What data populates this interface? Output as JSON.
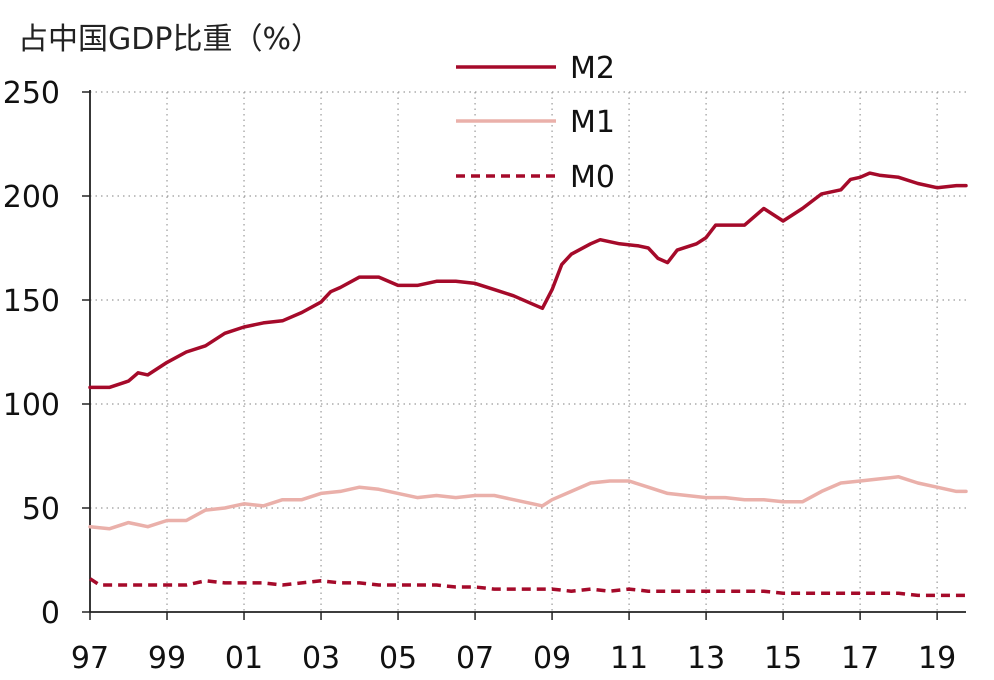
{
  "chart_data": {
    "type": "line",
    "title": "占中国GDP比重（%）",
    "xlabel": "",
    "ylabel": "",
    "ylim": [
      0,
      250
    ],
    "y_ticks": [
      0,
      50,
      100,
      150,
      200,
      250
    ],
    "xlim": [
      1997.0,
      2019.75
    ],
    "x_ticks": [
      {
        "value": 1997,
        "label": "97"
      },
      {
        "value": 1999,
        "label": "99"
      },
      {
        "value": 2001,
        "label": "01"
      },
      {
        "value": 2003,
        "label": "03"
      },
      {
        "value": 2005,
        "label": "05"
      },
      {
        "value": 2007,
        "label": "07"
      },
      {
        "value": 2009,
        "label": "09"
      },
      {
        "value": 2011,
        "label": "11"
      },
      {
        "value": 2013,
        "label": "13"
      },
      {
        "value": 2015,
        "label": "15"
      },
      {
        "value": 2017,
        "label": "17"
      },
      {
        "value": 2019,
        "label": "19"
      }
    ],
    "grid": true,
    "legend_position": "top-center",
    "series": [
      {
        "name": "M2",
        "color": "#a50a2a",
        "style": "solid",
        "points": [
          [
            1997.0,
            108
          ],
          [
            1997.5,
            108
          ],
          [
            1998.0,
            111
          ],
          [
            1998.25,
            115
          ],
          [
            1998.5,
            114
          ],
          [
            1999.0,
            120
          ],
          [
            1999.5,
            125
          ],
          [
            2000.0,
            128
          ],
          [
            2000.5,
            134
          ],
          [
            2001.0,
            137
          ],
          [
            2001.5,
            139
          ],
          [
            2002.0,
            140
          ],
          [
            2002.5,
            144
          ],
          [
            2003.0,
            149
          ],
          [
            2003.25,
            154
          ],
          [
            2003.5,
            156
          ],
          [
            2004.0,
            161
          ],
          [
            2004.5,
            161
          ],
          [
            2005.0,
            157
          ],
          [
            2005.5,
            157
          ],
          [
            2006.0,
            159
          ],
          [
            2006.5,
            159
          ],
          [
            2007.0,
            158
          ],
          [
            2007.5,
            155
          ],
          [
            2008.0,
            152
          ],
          [
            2008.5,
            148
          ],
          [
            2008.75,
            146
          ],
          [
            2009.0,
            155
          ],
          [
            2009.25,
            167
          ],
          [
            2009.5,
            172
          ],
          [
            2010.0,
            177
          ],
          [
            2010.25,
            179
          ],
          [
            2010.75,
            177
          ],
          [
            2011.25,
            176
          ],
          [
            2011.5,
            175
          ],
          [
            2011.75,
            170
          ],
          [
            2012.0,
            168
          ],
          [
            2012.25,
            174
          ],
          [
            2012.75,
            177
          ],
          [
            2013.0,
            180
          ],
          [
            2013.25,
            186
          ],
          [
            2013.5,
            186
          ],
          [
            2014.0,
            186
          ],
          [
            2014.5,
            194
          ],
          [
            2015.0,
            188
          ],
          [
            2015.5,
            194
          ],
          [
            2016.0,
            201
          ],
          [
            2016.5,
            203
          ],
          [
            2016.75,
            208
          ],
          [
            2017.0,
            209
          ],
          [
            2017.25,
            211
          ],
          [
            2017.5,
            210
          ],
          [
            2018.0,
            209
          ],
          [
            2018.5,
            206
          ],
          [
            2019.0,
            204
          ],
          [
            2019.5,
            205
          ],
          [
            2019.75,
            205
          ]
        ]
      },
      {
        "name": "M1",
        "color": "#eab0aa",
        "style": "solid",
        "points": [
          [
            1997.0,
            41
          ],
          [
            1997.5,
            40
          ],
          [
            1998.0,
            43
          ],
          [
            1998.25,
            42
          ],
          [
            1998.5,
            41
          ],
          [
            1999.0,
            44
          ],
          [
            1999.5,
            44
          ],
          [
            2000.0,
            49
          ],
          [
            2000.5,
            50
          ],
          [
            2001.0,
            52
          ],
          [
            2001.5,
            51
          ],
          [
            2002.0,
            54
          ],
          [
            2002.5,
            54
          ],
          [
            2003.0,
            57
          ],
          [
            2003.5,
            58
          ],
          [
            2004.0,
            60
          ],
          [
            2004.5,
            59
          ],
          [
            2005.0,
            57
          ],
          [
            2005.5,
            55
          ],
          [
            2006.0,
            56
          ],
          [
            2006.5,
            55
          ],
          [
            2007.0,
            56
          ],
          [
            2007.5,
            56
          ],
          [
            2008.0,
            54
          ],
          [
            2008.5,
            52
          ],
          [
            2008.75,
            51
          ],
          [
            2009.0,
            54
          ],
          [
            2009.5,
            58
          ],
          [
            2010.0,
            62
          ],
          [
            2010.5,
            63
          ],
          [
            2011.0,
            63
          ],
          [
            2011.5,
            60
          ],
          [
            2012.0,
            57
          ],
          [
            2012.5,
            56
          ],
          [
            2013.0,
            55
          ],
          [
            2013.5,
            55
          ],
          [
            2014.0,
            54
          ],
          [
            2014.5,
            54
          ],
          [
            2015.0,
            53
          ],
          [
            2015.5,
            53
          ],
          [
            2016.0,
            58
          ],
          [
            2016.5,
            62
          ],
          [
            2017.0,
            63
          ],
          [
            2017.5,
            64
          ],
          [
            2018.0,
            65
          ],
          [
            2018.5,
            62
          ],
          [
            2019.0,
            60
          ],
          [
            2019.5,
            58
          ],
          [
            2019.75,
            58
          ]
        ]
      },
      {
        "name": "M0",
        "color": "#a50a2a",
        "style": "dashed",
        "points": [
          [
            1997.0,
            16
          ],
          [
            1997.25,
            13
          ],
          [
            1998.0,
            13
          ],
          [
            1998.5,
            13
          ],
          [
            1999.0,
            13
          ],
          [
            1999.5,
            13
          ],
          [
            2000.0,
            15
          ],
          [
            2000.5,
            14
          ],
          [
            2001.0,
            14
          ],
          [
            2001.5,
            14
          ],
          [
            2002.0,
            13
          ],
          [
            2002.5,
            14
          ],
          [
            2003.0,
            15
          ],
          [
            2003.5,
            14
          ],
          [
            2004.0,
            14
          ],
          [
            2004.5,
            13
          ],
          [
            2005.0,
            13
          ],
          [
            2005.5,
            13
          ],
          [
            2006.0,
            13
          ],
          [
            2006.5,
            12
          ],
          [
            2007.0,
            12
          ],
          [
            2007.5,
            11
          ],
          [
            2008.0,
            11
          ],
          [
            2008.5,
            11
          ],
          [
            2009.0,
            11
          ],
          [
            2009.5,
            10
          ],
          [
            2010.0,
            11
          ],
          [
            2010.5,
            10
          ],
          [
            2011.0,
            11
          ],
          [
            2011.5,
            10
          ],
          [
            2012.0,
            10
          ],
          [
            2012.5,
            10
          ],
          [
            2013.0,
            10
          ],
          [
            2013.5,
            10
          ],
          [
            2014.0,
            10
          ],
          [
            2014.5,
            10
          ],
          [
            2015.0,
            9
          ],
          [
            2015.5,
            9
          ],
          [
            2016.0,
            9
          ],
          [
            2016.5,
            9
          ],
          [
            2017.0,
            9
          ],
          [
            2017.5,
            9
          ],
          [
            2018.0,
            9
          ],
          [
            2018.5,
            8
          ],
          [
            2019.0,
            8
          ],
          [
            2019.5,
            8
          ],
          [
            2019.75,
            8
          ]
        ]
      }
    ]
  }
}
